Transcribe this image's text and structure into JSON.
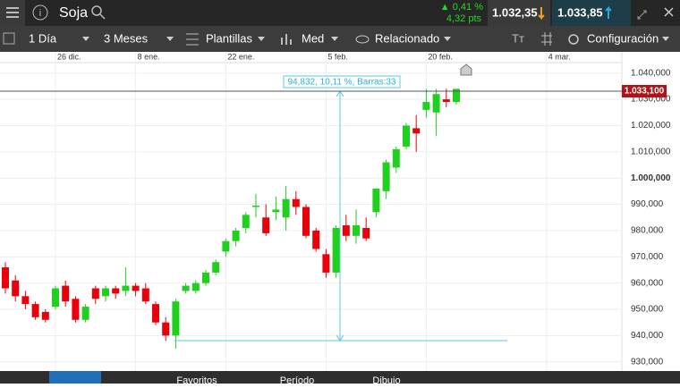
{
  "header": {
    "instrument": "Soja",
    "change_pct": "▲ 0,41 %",
    "change_pts": "4,32 pts",
    "bid": "1.032,35",
    "ask": "1.033,85"
  },
  "toolbar": {
    "interval": "1 Día",
    "range": "3 Meses",
    "templates": "Plantillas",
    "indicator": "Med",
    "related": "Relacionado",
    "settings": "Configuración"
  },
  "footer": {
    "favorites": "Favoritos",
    "period": "Período",
    "drawing": "Dibujo"
  },
  "chart_data": {
    "type": "candlestick",
    "categories": [
      null,
      null,
      null,
      null,
      null,
      "26 dic.",
      null,
      null,
      null,
      null,
      null,
      null,
      null,
      "8 ene.",
      null,
      null,
      null,
      null,
      null,
      null,
      null,
      null,
      "22 ene.",
      null,
      null,
      null,
      null,
      null,
      null,
      null,
      null,
      null,
      "5 feb.",
      null,
      null,
      null,
      null,
      null,
      null,
      null,
      null,
      null,
      "20 feb.",
      null,
      null,
      null,
      null,
      null,
      null,
      null,
      null,
      null,
      null,
      null,
      "4 mar."
    ],
    "open": [
      966,
      961,
      955,
      952,
      949,
      951,
      959,
      954,
      946,
      958,
      955,
      958,
      957,
      959,
      958,
      952,
      945,
      940,
      957,
      957,
      960,
      964,
      972,
      976,
      981,
      989,
      985,
      987,
      985,
      992,
      989,
      980,
      971,
      964,
      982,
      978,
      981,
      987,
      995,
      1004,
      1012,
      1019,
      1026,
      1025,
      1030,
      1029,
      null,
      null,
      null,
      null,
      null,
      null,
      null,
      null,
      null
    ],
    "high": [
      968,
      963,
      957,
      953,
      950,
      959,
      961,
      955,
      952,
      959,
      959,
      959,
      966,
      960,
      960,
      953,
      947,
      954,
      960,
      961,
      965,
      969,
      977,
      981,
      987,
      994,
      990,
      993,
      997,
      995,
      990,
      981,
      973,
      982,
      986,
      988,
      985,
      996,
      1007,
      1012,
      1021,
      1024,
      1034,
      1034,
      1034,
      1034,
      null,
      null,
      null,
      null,
      null,
      null,
      null,
      null,
      null
    ],
    "low": [
      956,
      953,
      950,
      946,
      945,
      950,
      951,
      945,
      945,
      952,
      953,
      954,
      955,
      955,
      952,
      944,
      938,
      935,
      956,
      956,
      959,
      963,
      970,
      974,
      979,
      985,
      978,
      984,
      980,
      986,
      977,
      972,
      962,
      962,
      976,
      975,
      976,
      985,
      992,
      1002,
      1011,
      1010,
      1023,
      1016,
      1027,
      1028,
      null,
      null,
      null,
      null,
      null,
      null,
      null,
      null,
      null
    ],
    "close": [
      958,
      955,
      952,
      947,
      946,
      958,
      953,
      946,
      951,
      954,
      958,
      956,
      959,
      957,
      953,
      945,
      940,
      953,
      959,
      960,
      964,
      968,
      976,
      980,
      986,
      989.5,
      979,
      988,
      992,
      989,
      978,
      973,
      964,
      981,
      978,
      982,
      977,
      996,
      1006,
      1011,
      1020,
      1017,
      1029,
      1032,
      1029,
      1034,
      null,
      null,
      null,
      null,
      null,
      null,
      null,
      null,
      null
    ],
    "up_color": "#1fd01f",
    "down_color": "#e8000b",
    "ylim": [
      926.5,
      1044
    ],
    "yticks": [
      {
        "value": 1040,
        "label": "1.040,000"
      },
      {
        "value": 1030,
        "label": "1.030,000"
      },
      {
        "value": 1020,
        "label": "1.020,000"
      },
      {
        "value": 1010,
        "label": "1.010,000"
      },
      {
        "value": 1000,
        "label": "1.000,000"
      },
      {
        "value": 990,
        "label": "990,000"
      },
      {
        "value": 980,
        "label": "980,000"
      },
      {
        "value": 970,
        "label": "970,000"
      },
      {
        "value": 960,
        "label": "960,000"
      },
      {
        "value": 950,
        "label": "950,000"
      },
      {
        "value": 940,
        "label": "940,000"
      },
      {
        "value": 930,
        "label": "930,000"
      }
    ],
    "grid": true,
    "current_price": {
      "value": 1033.1,
      "label": "1.033,100"
    },
    "annotation": "94,832, 10,11 %, Barras:33"
  }
}
